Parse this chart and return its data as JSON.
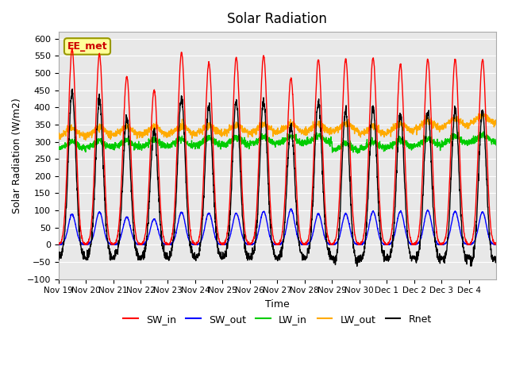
{
  "title": "Solar Radiation",
  "xlabel": "Time",
  "ylabel": "Solar Radiation (W/m2)",
  "ylim": [
    -100,
    620
  ],
  "colors": {
    "SW_in": "#ff0000",
    "SW_out": "#0000ff",
    "LW_in": "#00cc00",
    "LW_out": "#ffaa00",
    "Rnet": "#000000"
  },
  "annotation_text": "EE_met",
  "annotation_color": "#cc0000",
  "annotation_bg": "#ffff99",
  "annotation_border": "#999900",
  "background_color": "#e8e8e8",
  "x_tick_labels": [
    "Nov 19",
    "Nov 20",
    "Nov 21",
    "Nov 22",
    "Nov 23",
    "Nov 24",
    "Nov 25",
    "Nov 26",
    "Nov 27",
    "Nov 28",
    "Nov 29",
    "Nov 30",
    "Dec 1",
    "Dec 2",
    "Dec 3",
    "Dec 4"
  ],
  "n_days": 16,
  "line_width": 1.0,
  "SW_in_peaks": [
    570,
    555,
    490,
    450,
    560,
    530,
    545,
    550,
    485,
    540,
    540,
    545,
    525,
    540,
    540,
    540
  ],
  "SW_out_peaks": [
    88,
    95,
    80,
    75,
    95,
    92,
    92,
    97,
    103,
    90,
    90,
    97,
    97,
    100,
    97,
    95
  ]
}
